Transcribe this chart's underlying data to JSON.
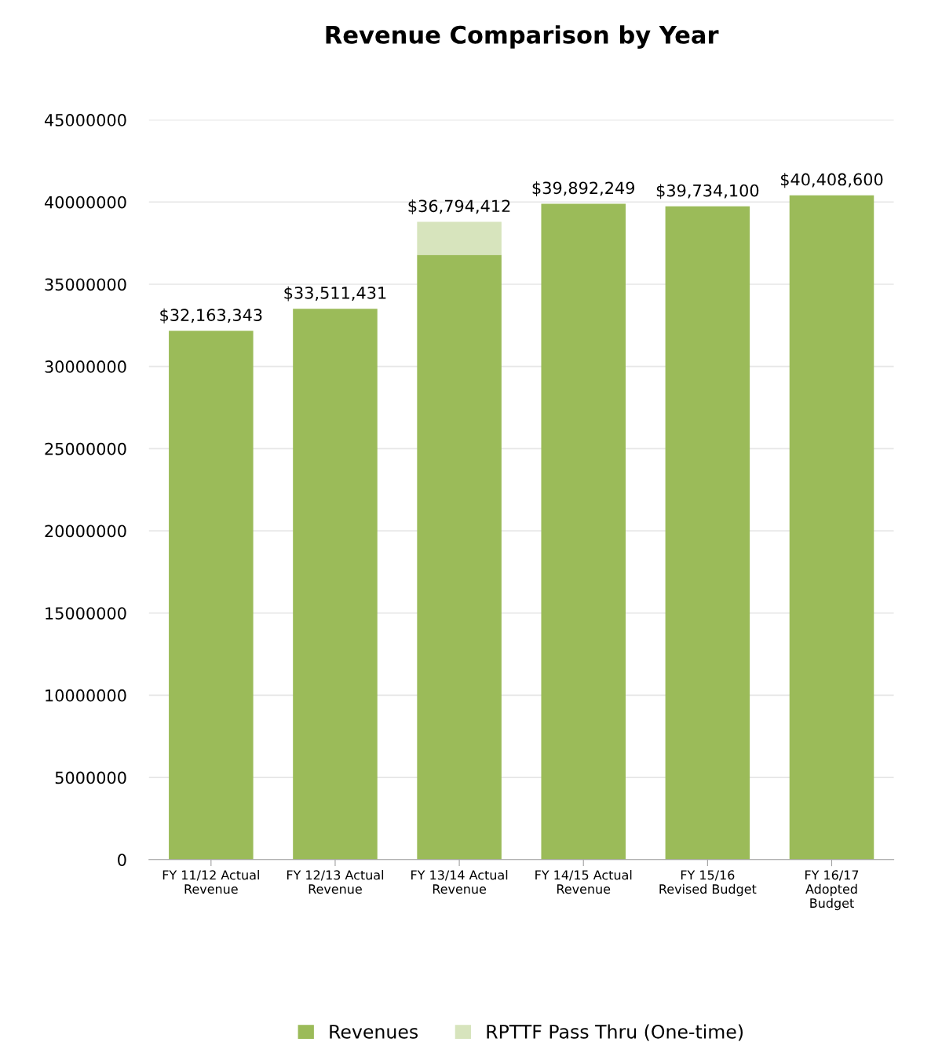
{
  "chart_data": {
    "type": "bar",
    "title": "Revenue Comparison by Year",
    "stacked": true,
    "categories": [
      "FY 11/12 Actual\nRevenue",
      "FY 12/13 Actual\nRevenue",
      "FY 13/14 Actual\nRevenue",
      "FY 14/15 Actual\nRevenue",
      "FY 15/16\nRevised Budget",
      "FY 16/17\nAdopted\nBudget"
    ],
    "series": [
      {
        "name": "Revenues",
        "color": "#9bbb59",
        "values": [
          32163343,
          33511431,
          36794412,
          39892249,
          39734100,
          40408600
        ],
        "value_labels": [
          "$32,163,343",
          "$33,511,431",
          "$36,794,412",
          "$39,892,249",
          "$39,734,100",
          "$40,408,600"
        ]
      },
      {
        "name": "RPTTF Pass Thru (One-time)",
        "color": "#d7e4bd",
        "values": [
          null,
          null,
          2000000,
          null,
          null,
          null
        ]
      }
    ],
    "ylim": [
      0,
      45000000
    ],
    "yticks": [
      0,
      5000000,
      10000000,
      15000000,
      20000000,
      25000000,
      30000000,
      35000000,
      40000000,
      45000000
    ],
    "grid": "y",
    "legend": "bottom"
  }
}
